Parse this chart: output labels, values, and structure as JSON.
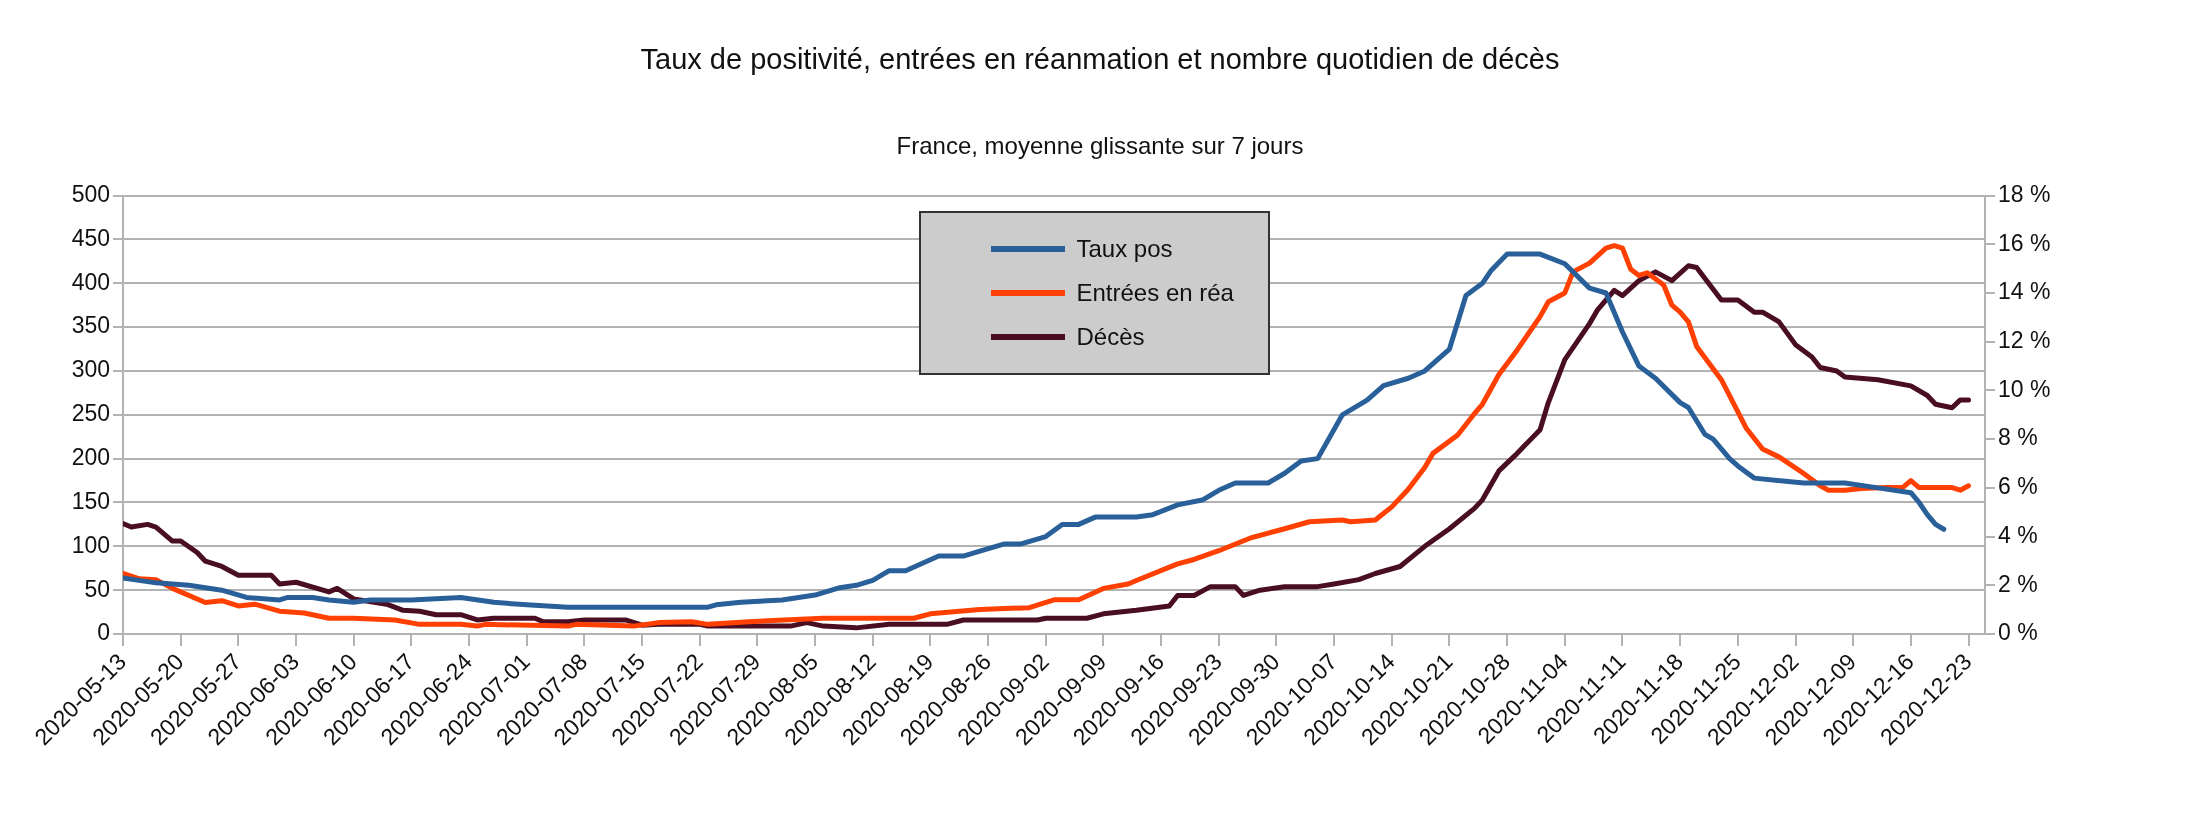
{
  "chart_data": {
    "type": "line",
    "title": "Taux de positivité, entrées en réanmation et nombre quotidien de décès",
    "subtitle": "France, moyenne glissante sur 7 jours",
    "xlim": [
      "2020-05-13",
      "2020-12-25"
    ],
    "xticks": [
      "2020-05-13",
      "2020-05-20",
      "2020-05-27",
      "2020-06-03",
      "2020-06-10",
      "2020-06-17",
      "2020-06-24",
      "2020-07-01",
      "2020-07-08",
      "2020-07-15",
      "2020-07-22",
      "2020-07-29",
      "2020-08-05",
      "2020-08-12",
      "2020-08-19",
      "2020-08-26",
      "2020-09-02",
      "2020-09-09",
      "2020-09-16",
      "2020-09-23",
      "2020-09-30",
      "2020-10-07",
      "2020-10-14",
      "2020-10-21",
      "2020-10-28",
      "2020-11-04",
      "2020-11-11",
      "2020-11-18",
      "2020-11-25",
      "2020-12-02",
      "2020-12-09",
      "2020-12-16",
      "2020-12-23"
    ],
    "ylim": [
      0,
      500
    ],
    "yticks": [
      0,
      50,
      100,
      150,
      200,
      250,
      300,
      350,
      400,
      450,
      500
    ],
    "y2lim": [
      0,
      18
    ],
    "y2ticks": [
      {
        "value": 0,
        "label": "0 %"
      },
      {
        "value": 2,
        "label": "2 %"
      },
      {
        "value": 4,
        "label": "4 %"
      },
      {
        "value": 6,
        "label": "6 %"
      },
      {
        "value": 8,
        "label": "8 %"
      },
      {
        "value": 10,
        "label": "10 %"
      },
      {
        "value": 12,
        "label": "12 %"
      },
      {
        "value": 14,
        "label": "14 %"
      },
      {
        "value": 16,
        "label": "16 %"
      },
      {
        "value": 18,
        "label": "18 %"
      }
    ],
    "grid": "y",
    "legend": "top",
    "marker": "none",
    "line_style": "solid",
    "series": [
      {
        "name": "Taux pos",
        "color": "#2a6099",
        "axis": "y2",
        "x": [
          "2020-05-13",
          "2020-05-17",
          "2020-05-21",
          "2020-05-25",
          "2020-05-28",
          "2020-06-01",
          "2020-06-02",
          "2020-06-05",
          "2020-06-07",
          "2020-06-10",
          "2020-06-12",
          "2020-06-17",
          "2020-06-23",
          "2020-06-27",
          "2020-07-01",
          "2020-07-06",
          "2020-07-15",
          "2020-07-23",
          "2020-07-24",
          "2020-07-27",
          "2020-08-01",
          "2020-08-05",
          "2020-08-08",
          "2020-08-10",
          "2020-08-12",
          "2020-08-14",
          "2020-08-16",
          "2020-08-20",
          "2020-08-23",
          "2020-08-25",
          "2020-08-28",
          "2020-08-30",
          "2020-09-02",
          "2020-09-04",
          "2020-09-06",
          "2020-09-08",
          "2020-09-13",
          "2020-09-15",
          "2020-09-18",
          "2020-09-21",
          "2020-09-23",
          "2020-09-25",
          "2020-09-29",
          "2020-10-01",
          "2020-10-03",
          "2020-10-05",
          "2020-10-08",
          "2020-10-11",
          "2020-10-13",
          "2020-10-16",
          "2020-10-18",
          "2020-10-21",
          "2020-10-23",
          "2020-10-25",
          "2020-10-26",
          "2020-10-28",
          "2020-11-01",
          "2020-11-04",
          "2020-11-07",
          "2020-11-09",
          "2020-11-11",
          "2020-11-13",
          "2020-11-15",
          "2020-11-18",
          "2020-11-19",
          "2020-11-21",
          "2020-11-22",
          "2020-11-24",
          "2020-11-25",
          "2020-11-27",
          "2020-12-03",
          "2020-12-08",
          "2020-12-12",
          "2020-12-16",
          "2020-12-17",
          "2020-12-18",
          "2020-12-19",
          "2020-12-20"
        ],
        "values": [
          2.3,
          2.1,
          2.0,
          1.8,
          1.5,
          1.4,
          1.5,
          1.5,
          1.4,
          1.3,
          1.4,
          1.4,
          1.5,
          1.3,
          1.2,
          1.1,
          1.1,
          1.1,
          1.2,
          1.3,
          1.4,
          1.6,
          1.9,
          2.0,
          2.2,
          2.6,
          2.6,
          3.2,
          3.2,
          3.4,
          3.7,
          3.7,
          4.0,
          4.5,
          4.5,
          4.8,
          4.8,
          4.9,
          5.3,
          5.5,
          5.9,
          6.2,
          6.2,
          6.6,
          7.1,
          7.2,
          9.0,
          9.6,
          10.2,
          10.5,
          10.8,
          11.7,
          13.9,
          14.4,
          14.9,
          15.6,
          15.6,
          15.2,
          14.2,
          14.0,
          12.4,
          11.0,
          10.5,
          9.5,
          9.3,
          8.2,
          8.0,
          7.2,
          6.9,
          6.4,
          6.2,
          6.2,
          6.0,
          5.8,
          5.4,
          4.9,
          4.5,
          4.3
        ]
      },
      {
        "name": "Entrées en réa",
        "color": "#ff4000",
        "x": [
          "2020-05-13",
          "2020-05-15",
          "2020-05-17",
          "2020-05-19",
          "2020-05-23",
          "2020-05-25",
          "2020-05-27",
          "2020-05-29",
          "2020-06-01",
          "2020-06-04",
          "2020-06-07",
          "2020-06-10",
          "2020-06-15",
          "2020-06-18",
          "2020-06-23",
          "2020-06-25",
          "2020-06-26",
          "2020-07-06",
          "2020-07-07",
          "2020-07-14",
          "2020-07-17",
          "2020-07-21",
          "2020-07-23",
          "2020-07-28",
          "2020-08-06",
          "2020-08-17",
          "2020-08-19",
          "2020-08-25",
          "2020-08-31",
          "2020-09-03",
          "2020-09-06",
          "2020-09-09",
          "2020-09-12",
          "2020-09-13",
          "2020-09-18",
          "2020-09-20",
          "2020-09-23",
          "2020-09-27",
          "2020-10-01",
          "2020-10-04",
          "2020-10-08",
          "2020-10-09",
          "2020-10-12",
          "2020-10-14",
          "2020-10-16",
          "2020-10-18",
          "2020-10-19",
          "2020-10-22",
          "2020-10-24",
          "2020-10-25",
          "2020-10-27",
          "2020-10-29",
          "2020-11-01",
          "2020-11-02",
          "2020-11-04",
          "2020-11-05",
          "2020-11-07",
          "2020-11-09",
          "2020-11-10",
          "2020-11-11",
          "2020-11-12",
          "2020-11-13",
          "2020-11-14",
          "2020-11-16",
          "2020-11-17",
          "2020-11-18",
          "2020-11-19",
          "2020-11-20",
          "2020-11-23",
          "2020-11-26",
          "2020-11-28",
          "2020-11-30",
          "2020-12-03",
          "2020-12-05",
          "2020-12-06",
          "2020-12-08",
          "2020-12-10",
          "2020-12-13",
          "2020-12-15",
          "2020-12-16",
          "2020-12-17",
          "2020-12-21",
          "2020-12-22",
          "2020-12-23"
        ],
        "values": [
          69,
          63,
          62,
          52,
          36,
          38,
          32,
          34,
          26,
          24,
          18,
          18,
          16,
          11,
          11,
          9,
          11,
          9,
          11,
          9,
          13,
          14,
          11,
          14,
          18,
          18,
          23,
          28,
          30,
          39,
          39,
          52,
          57,
          61,
          80,
          85,
          95,
          110,
          120,
          128,
          130,
          128,
          130,
          145,
          165,
          190,
          206,
          227,
          251,
          262,
          296,
          321,
          362,
          379,
          389,
          413,
          423,
          440,
          443,
          440,
          416,
          409,
          412,
          398,
          375,
          367,
          356,
          328,
          290,
          235,
          211,
          202,
          183,
          169,
          164,
          164,
          166,
          167,
          167,
          175,
          167,
          167,
          164,
          169
        ]
      },
      {
        "name": "Décès",
        "color": "#4a0e24",
        "x": [
          "2020-05-13",
          "2020-05-14",
          "2020-05-16",
          "2020-05-17",
          "2020-05-19",
          "2020-05-20",
          "2020-05-22",
          "2020-05-23",
          "2020-05-25",
          "2020-05-27",
          "2020-05-31",
          "2020-06-01",
          "2020-06-03",
          "2020-06-07",
          "2020-06-08",
          "2020-06-10",
          "2020-06-14",
          "2020-06-16",
          "2020-06-18",
          "2020-06-20",
          "2020-06-23",
          "2020-06-25",
          "2020-06-27",
          "2020-07-02",
          "2020-07-03",
          "2020-07-06",
          "2020-07-08",
          "2020-07-13",
          "2020-07-15",
          "2020-07-17",
          "2020-07-22",
          "2020-07-23",
          "2020-08-02",
          "2020-08-04",
          "2020-08-06",
          "2020-08-10",
          "2020-08-14",
          "2020-08-21",
          "2020-08-23",
          "2020-09-01",
          "2020-09-02",
          "2020-09-07",
          "2020-09-09",
          "2020-09-13",
          "2020-09-17",
          "2020-09-18",
          "2020-09-20",
          "2020-09-22",
          "2020-09-25",
          "2020-09-26",
          "2020-09-28",
          "2020-10-01",
          "2020-10-05",
          "2020-10-07",
          "2020-10-10",
          "2020-10-12",
          "2020-10-15",
          "2020-10-18",
          "2020-10-21",
          "2020-10-24",
          "2020-10-25",
          "2020-10-27",
          "2020-10-29",
          "2020-11-01",
          "2020-11-02",
          "2020-11-04",
          "2020-11-07",
          "2020-11-08",
          "2020-11-10",
          "2020-11-11",
          "2020-11-13",
          "2020-11-15",
          "2020-11-17",
          "2020-11-19",
          "2020-11-20",
          "2020-11-23",
          "2020-11-25",
          "2020-11-27",
          "2020-11-28",
          "2020-11-30",
          "2020-12-02",
          "2020-12-04",
          "2020-12-05",
          "2020-12-07",
          "2020-12-08",
          "2020-12-12",
          "2020-12-16",
          "2020-12-18",
          "2020-12-19",
          "2020-12-21",
          "2020-12-22",
          "2020-12-23"
        ],
        "values": [
          126,
          122,
          125,
          122,
          106,
          106,
          93,
          83,
          77,
          67,
          67,
          57,
          59,
          48,
          52,
          40,
          34,
          27,
          26,
          22,
          22,
          16,
          18,
          18,
          14,
          14,
          16,
          16,
          10,
          11,
          11,
          9,
          9,
          13,
          9,
          7,
          11,
          11,
          16,
          16,
          18,
          18,
          23,
          27,
          32,
          44,
          44,
          54,
          54,
          44,
          50,
          54,
          54,
          57,
          62,
          69,
          77,
          100,
          120,
          143,
          153,
          186,
          204,
          233,
          264,
          313,
          354,
          370,
          392,
          386,
          403,
          413,
          403,
          420,
          418,
          381,
          381,
          367,
          367,
          356,
          330,
          316,
          304,
          300,
          293,
          290,
          283,
          272,
          262,
          258,
          267,
          267
        ]
      }
    ]
  }
}
